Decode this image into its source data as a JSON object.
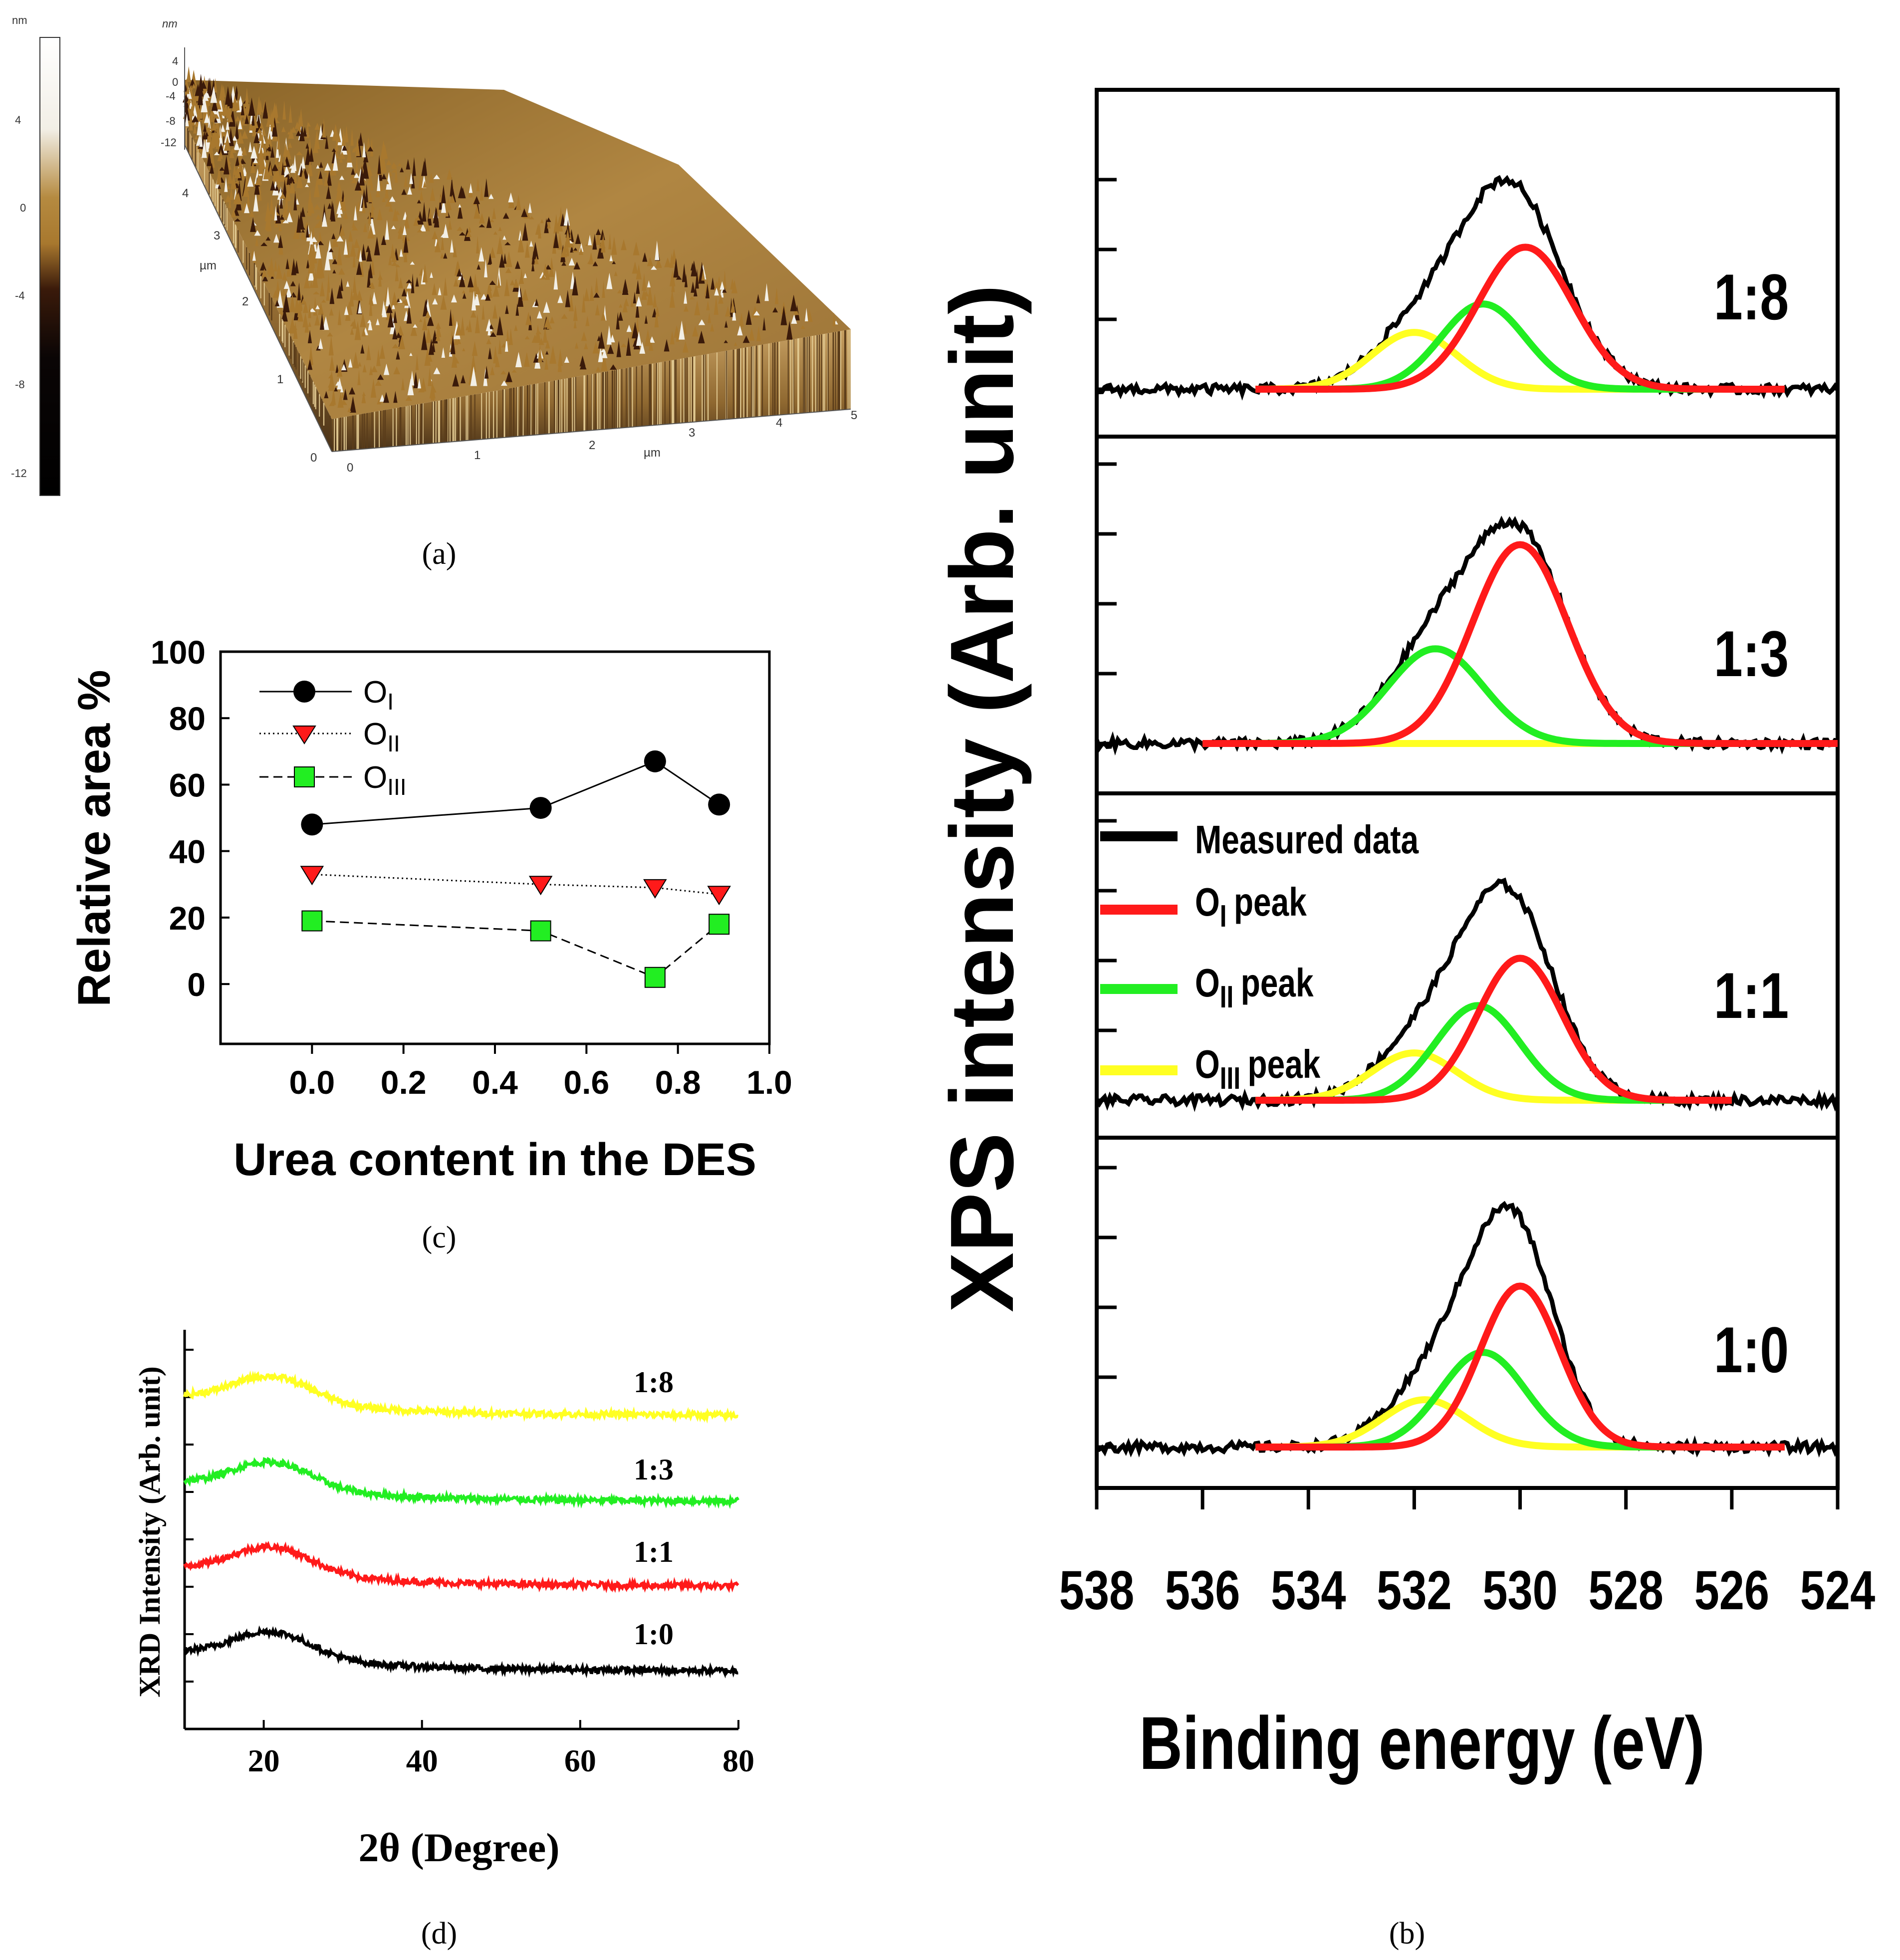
{
  "captions": {
    "a": "(a)",
    "b": "(b)",
    "c": "(c)",
    "d": "(d)"
  },
  "colors": {
    "measured": "#000000",
    "O1": "#ff1a1a",
    "O2": "#22ee22",
    "O3": "#ffff22",
    "afm_high": "#f2efe6",
    "afm_mid": "#a8782e",
    "afm_low": "#3a1a0a"
  },
  "afm": {
    "type": "3d-surface",
    "z_unit": "nm",
    "colorbar_unit": "nm",
    "colorbar_ticks": [
      "4",
      "0",
      "-4",
      "-8",
      "-12"
    ],
    "z_ticks": [
      "4",
      "0",
      "-4",
      "-8",
      "-12"
    ],
    "xy_unit": "µm",
    "x_ticks": [
      "0",
      "1",
      "2",
      "3",
      "4",
      "5"
    ],
    "y_ticks": [
      "0",
      "1",
      "2",
      "3",
      "4"
    ]
  },
  "chart_data": [
    {
      "id": "xps",
      "type": "line",
      "xlabel": "Binding energy (eV)",
      "ylabel": "XPS intensity (Arb. unit)",
      "xlim": [
        538,
        524
      ],
      "x_ticks": [
        "538",
        "536",
        "534",
        "532",
        "530",
        "528",
        "526",
        "524"
      ],
      "legend": [
        "Measured data",
        "O",
        "O",
        "O"
      ],
      "legend_sub": [
        "I",
        "II",
        "III"
      ],
      "legend_suffix": "peak",
      "legend_position": "left",
      "panels": [
        {
          "label": "1:8",
          "peaks": [
            {
              "name": "OI",
              "center": 529.9,
              "height": 0.75,
              "width": 0.9
            },
            {
              "name": "OII",
              "center": 530.7,
              "height": 0.45,
              "width": 0.8
            },
            {
              "name": "OIII",
              "center": 532.0,
              "height": 0.3,
              "width": 0.8
            }
          ]
        },
        {
          "label": "1:3",
          "peaks": [
            {
              "name": "OI",
              "center": 530.0,
              "height": 1.05,
              "width": 0.9
            },
            {
              "name": "OII",
              "center": 531.6,
              "height": 0.5,
              "width": 0.9
            },
            {
              "name": "OIII",
              "center": 531.8,
              "height": 0.0,
              "width": 0.8
            }
          ]
        },
        {
          "label": "1:1",
          "peaks": [
            {
              "name": "OI",
              "center": 530.0,
              "height": 0.75,
              "width": 0.8
            },
            {
              "name": "OII",
              "center": 530.8,
              "height": 0.5,
              "width": 0.8
            },
            {
              "name": "OIII",
              "center": 532.0,
              "height": 0.25,
              "width": 0.8
            }
          ]
        },
        {
          "label": "1:0",
          "peaks": [
            {
              "name": "OI",
              "center": 530.0,
              "height": 0.85,
              "width": 0.75
            },
            {
              "name": "OII",
              "center": 530.7,
              "height": 0.5,
              "width": 0.8
            },
            {
              "name": "OIII",
              "center": 531.8,
              "height": 0.25,
              "width": 0.8
            }
          ]
        }
      ]
    },
    {
      "id": "relative-area",
      "type": "line",
      "xlabel": "Urea content in the DES",
      "ylabel": "Relative area %",
      "xlim": [
        -0.2,
        1.0
      ],
      "ylim": [
        -18,
        100
      ],
      "x_ticks": [
        "0.0",
        "0.2",
        "0.4",
        "0.6",
        "0.8",
        "1.0"
      ],
      "y_ticks": [
        "0",
        "20",
        "40",
        "60",
        "80",
        "100"
      ],
      "x": [
        0.0,
        0.5,
        0.75,
        0.89
      ],
      "legend_position": "top-left",
      "series": [
        {
          "name": "O",
          "sub": "I",
          "marker": "circle",
          "line": "solid",
          "values": [
            48,
            53,
            67,
            54
          ]
        },
        {
          "name": "O",
          "sub": "II",
          "marker": "triangle-down",
          "line": "dotted",
          "values": [
            33,
            30,
            29,
            27
          ]
        },
        {
          "name": "O",
          "sub": "III",
          "marker": "square",
          "line": "dashed",
          "values": [
            19,
            16,
            2,
            18
          ]
        }
      ]
    },
    {
      "id": "xrd",
      "type": "line",
      "xlabel": "2θ (Degree)",
      "ylabel": "XRD Intensity (Arb. unit)",
      "xlim": [
        10,
        80
      ],
      "x_ticks": [
        "20",
        "40",
        "60",
        "80"
      ],
      "peak_center": 21,
      "series": [
        {
          "name": "1:8",
          "color": "#ffff22"
        },
        {
          "name": "1:3",
          "color": "#22ee22"
        },
        {
          "name": "1:1",
          "color": "#ff1a1a"
        },
        {
          "name": "1:0",
          "color": "#000000"
        }
      ]
    }
  ]
}
